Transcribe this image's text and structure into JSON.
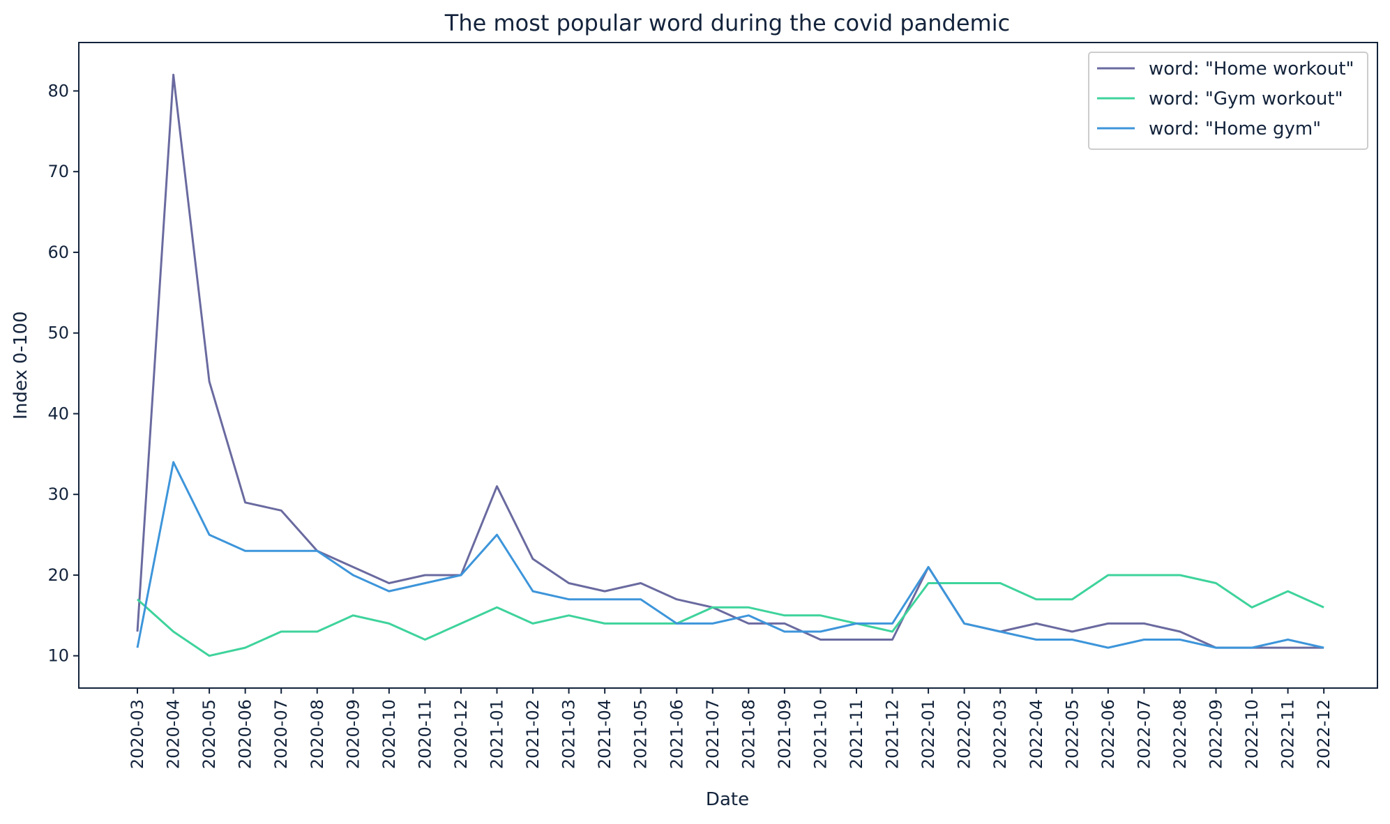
{
  "chart_data": {
    "type": "line",
    "title": "The most popular word during the covid pandemic",
    "xlabel": "Date",
    "ylabel": "Index 0-100",
    "ylim": [
      6,
      86
    ],
    "yticks": [
      10,
      20,
      30,
      40,
      50,
      60,
      70,
      80
    ],
    "grid": false,
    "legend_position": "top-right",
    "categories": [
      "2020-03",
      "2020-04",
      "2020-05",
      "2020-06",
      "2020-07",
      "2020-08",
      "2020-09",
      "2020-10",
      "2020-11",
      "2020-12",
      "2021-01",
      "2021-02",
      "2021-03",
      "2021-04",
      "2021-05",
      "2021-06",
      "2021-07",
      "2021-08",
      "2021-09",
      "2021-10",
      "2021-11",
      "2021-12",
      "2022-01",
      "2022-02",
      "2022-03",
      "2022-04",
      "2022-05",
      "2022-06",
      "2022-07",
      "2022-08",
      "2022-09",
      "2022-10",
      "2022-11",
      "2022-12"
    ],
    "series": [
      {
        "name": "word: \"Home workout\"",
        "color": "#6a6aa0",
        "values": [
          13,
          82,
          44,
          29,
          28,
          23,
          21,
          19,
          20,
          20,
          31,
          22,
          19,
          18,
          19,
          17,
          16,
          14,
          14,
          12,
          12,
          12,
          21,
          14,
          13,
          14,
          13,
          14,
          14,
          13,
          11,
          11,
          11,
          11
        ]
      },
      {
        "name": "word: \"Gym workout\"",
        "color": "#3ed39c",
        "values": [
          17,
          13,
          10,
          11,
          13,
          13,
          15,
          14,
          12,
          14,
          16,
          14,
          15,
          14,
          14,
          14,
          16,
          16,
          15,
          15,
          14,
          13,
          19,
          19,
          19,
          17,
          17,
          20,
          20,
          20,
          19,
          16,
          18,
          16
        ]
      },
      {
        "name": "word: \"Home gym\"",
        "color": "#3d95da",
        "values": [
          11,
          34,
          25,
          23,
          23,
          23,
          20,
          18,
          19,
          20,
          25,
          18,
          17,
          17,
          17,
          14,
          14,
          15,
          13,
          13,
          14,
          14,
          21,
          14,
          13,
          12,
          12,
          11,
          12,
          12,
          11,
          11,
          12,
          11
        ]
      }
    ]
  }
}
